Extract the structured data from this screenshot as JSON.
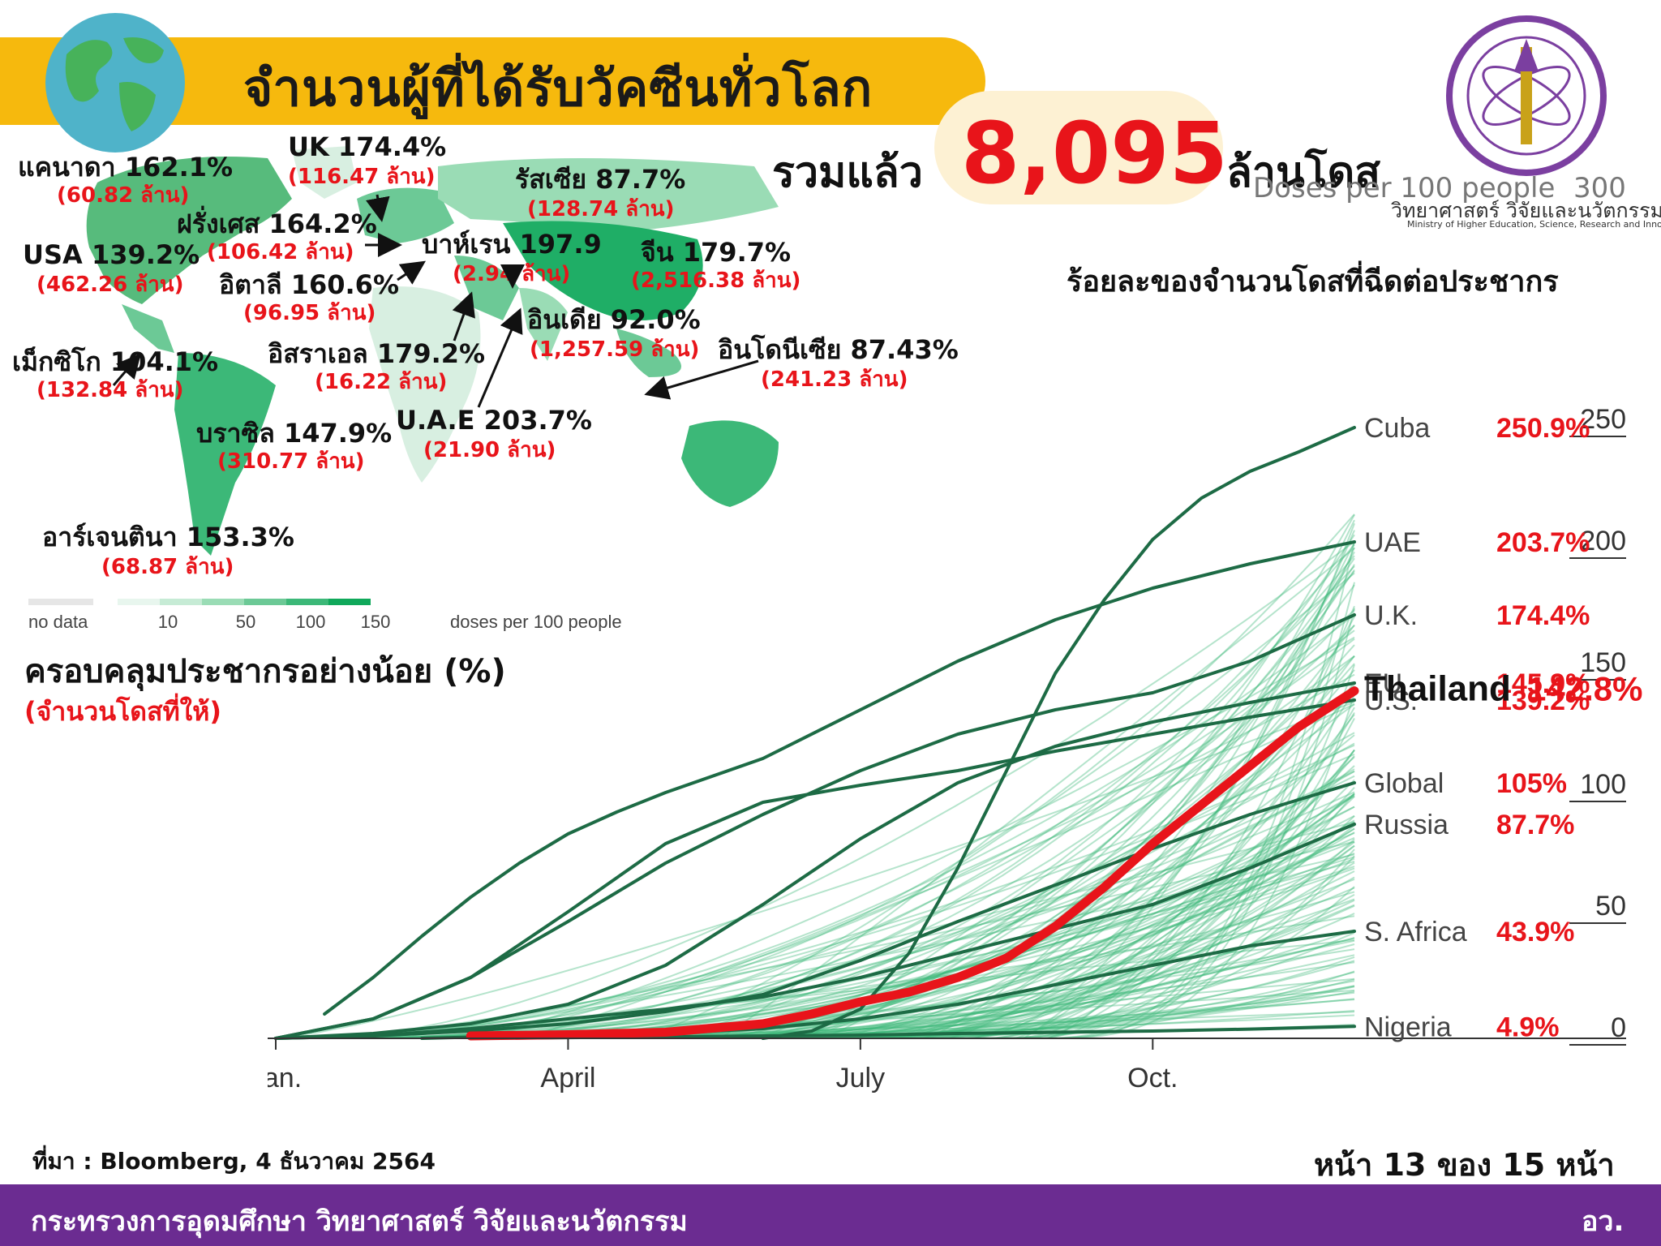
{
  "header": {
    "title": "จำนวนผู้ที่ได้รับวัคซีนทั่วโลก",
    "total_prefix": "รวมแล้ว",
    "total_value": "8,095",
    "total_suffix": "ล้านโดส",
    "ministry_th": "วิทยาศาสตร์ วิจัยและนวัตกรรม",
    "ministry_en": "Ministry of Higher Education, Science, Research and Innovation",
    "logo_icon": "ministry-seal-icon",
    "globe_icon": "globe-icon"
  },
  "map": {
    "labels": [
      {
        "id": "canada",
        "name": "แคนาดา 162.1%",
        "doses": "(60.82 ล้าน)"
      },
      {
        "id": "uk",
        "name": "UK 174.4%",
        "doses": "(116.47 ล้าน)"
      },
      {
        "id": "russia",
        "name": "รัสเซีย 87.7%",
        "doses": "(128.74 ล้าน)"
      },
      {
        "id": "france",
        "name": "ฝรั่งเศส 164.2%",
        "doses": "(106.42 ล้าน)"
      },
      {
        "id": "usa",
        "name": "USA 139.2%",
        "doses": "(462.26 ล้าน)"
      },
      {
        "id": "bahrain",
        "name": "บาห์เรน 197.9",
        "doses": "(2.94 ล้าน)"
      },
      {
        "id": "china",
        "name": "จีน 179.7%",
        "doses": "(2,516.38 ล้าน)"
      },
      {
        "id": "italy",
        "name": "อิตาลี 160.6%",
        "doses": "(96.95 ล้าน)"
      },
      {
        "id": "india",
        "name": "อินเดีย 92.0%",
        "doses": "(1,257.59 ล้าน)"
      },
      {
        "id": "mexico",
        "name": "เม็กซิโก 104.1%",
        "doses": "(132.84 ล้าน)"
      },
      {
        "id": "israel",
        "name": "อิสราเอล 179.2%",
        "doses": "(16.22 ล้าน)"
      },
      {
        "id": "indonesia",
        "name": "อินโดนีเซีย 87.43%",
        "doses": "(241.23 ล้าน)"
      },
      {
        "id": "uae",
        "name": "U.A.E 203.7%",
        "doses": "(21.90 ล้าน)"
      },
      {
        "id": "brazil",
        "name": "บราซิล 147.9%",
        "doses": "(310.77 ล้าน)"
      },
      {
        "id": "argentina",
        "name": "อาร์เจนตินา 153.3%",
        "doses": "(68.87 ล้าน)"
      }
    ],
    "legend": {
      "no_data": "no data",
      "ticks": [
        "10",
        "50",
        "100",
        "150"
      ],
      "unit": "doses per 100 people",
      "colors": [
        "#e8f6ee",
        "#c6ebd5",
        "#9adcb5",
        "#6cc996",
        "#3cb878",
        "#0fa85a"
      ]
    },
    "coverage_title": "ครอบคลุมประชากรอย่างน้อย (%)",
    "coverage_sub": "(จำนวนโดสที่ให้)"
  },
  "chart_data": {
    "type": "line",
    "title": "ร้อยละของจำนวนโดสที่ฉีดต่อประชากร",
    "top_axis_label": "Doses per 100 people",
    "top_axis_max": "300",
    "x_ticks": [
      "Jan.",
      "April",
      "July",
      "Oct."
    ],
    "x_tick_months": [
      0,
      3,
      6,
      9
    ],
    "x_range_months": [
      0,
      11.07
    ],
    "ylim": [
      0,
      300
    ],
    "y_ticks": [
      0,
      50,
      100,
      150,
      200,
      250
    ],
    "grid": false,
    "series": [
      {
        "name": "Cuba",
        "value_label": "250.9%",
        "x": [
          5,
          5.5,
          6,
          6.5,
          7,
          7.5,
          8,
          8.5,
          9,
          9.5,
          10,
          10.5,
          11.07
        ],
        "y": [
          0,
          3,
          12,
          35,
          70,
          110,
          150,
          180,
          205,
          222,
          233,
          241,
          251
        ],
        "highlight": false
      },
      {
        "name": "UAE",
        "value_label": "203.7%",
        "x": [
          0.5,
          1,
          1.5,
          2,
          2.5,
          3,
          3.5,
          4,
          5,
          6,
          7,
          8,
          9,
          10,
          11.07
        ],
        "y": [
          10,
          25,
          42,
          58,
          72,
          84,
          93,
          101,
          115,
          135,
          155,
          172,
          185,
          195,
          204
        ],
        "highlight": false
      },
      {
        "name": "U.K.",
        "value_label": "174.4%",
        "x": [
          0,
          1,
          2,
          3,
          4,
          5,
          6,
          7,
          8,
          9,
          10,
          11.07
        ],
        "y": [
          0,
          8,
          25,
          48,
          72,
          92,
          110,
          125,
          135,
          142,
          155,
          174
        ],
        "highlight": false
      },
      {
        "name": "EU",
        "value_label": "145.9%",
        "x": [
          0,
          1,
          2,
          3,
          4,
          5,
          6,
          7,
          8,
          9,
          10,
          11.07
        ],
        "y": [
          0,
          2,
          6,
          14,
          30,
          55,
          82,
          105,
          120,
          130,
          138,
          146
        ],
        "highlight": false
      },
      {
        "name": "U.S.",
        "value_label": "139.2%",
        "x": [
          0,
          1,
          2,
          3,
          4,
          5,
          6,
          7,
          8,
          9,
          10,
          11.07
        ],
        "y": [
          0,
          8,
          25,
          52,
          80,
          97,
          104,
          110,
          118,
          125,
          132,
          139
        ],
        "highlight": false
      },
      {
        "name": "Global",
        "value_label": "105%",
        "x": [
          0,
          1,
          2,
          3,
          4,
          5,
          6,
          7,
          8,
          9,
          10,
          11.07
        ],
        "y": [
          0,
          1,
          3,
          6,
          11,
          18,
          32,
          48,
          63,
          78,
          92,
          105
        ],
        "highlight": false
      },
      {
        "name": "Russia",
        "value_label": "87.7%",
        "x": [
          0,
          1,
          2,
          3,
          4,
          5,
          6,
          7,
          8,
          9,
          10,
          11.07
        ],
        "y": [
          0,
          1,
          4,
          8,
          12,
          17,
          25,
          35,
          45,
          55,
          70,
          88
        ],
        "highlight": false
      },
      {
        "name": "S. Africa",
        "value_label": "43.9%",
        "x": [
          1.5,
          2,
          3,
          4,
          5,
          6,
          7,
          8,
          9,
          10,
          11.07
        ],
        "y": [
          0,
          0.5,
          1,
          2,
          4,
          8,
          14,
          22,
          30,
          38,
          44
        ],
        "highlight": false
      },
      {
        "name": "Nigeria",
        "value_label": "4.9%",
        "x": [
          2,
          3,
          4,
          5,
          6,
          7,
          8,
          9,
          10,
          11.07
        ],
        "y": [
          0,
          0.3,
          0.6,
          1,
          1.3,
          2,
          2.5,
          3,
          3.8,
          4.9
        ],
        "highlight": false
      },
      {
        "name": "Thailand",
        "value_label": "142.8%",
        "x": [
          2,
          3,
          4,
          5,
          5.5,
          6,
          6.5,
          7,
          7.5,
          8,
          8.5,
          9,
          9.5,
          10,
          10.5,
          11.07
        ],
        "y": [
          1,
          1.5,
          2.5,
          6,
          10,
          15,
          19,
          25,
          33,
          46,
          62,
          80,
          96,
          112,
          128,
          142.8
        ],
        "highlight": true
      }
    ]
  },
  "footer": {
    "source": "ที่มา : Bloomberg, 4 ธันวาคม 2564",
    "page": "หน้า 13 ของ 15 หน้า",
    "ministry": "กระทรวงการอุดมศึกษา วิทยาศาสตร์ วิจัยและนวัตกรรม",
    "code": "อว."
  },
  "colors": {
    "title_bar": "#f6b90d",
    "accent_red": "#e8141a",
    "line_light": "#3cb878",
    "line_dark": "#1d6b45",
    "footer": "#6b2c91"
  }
}
